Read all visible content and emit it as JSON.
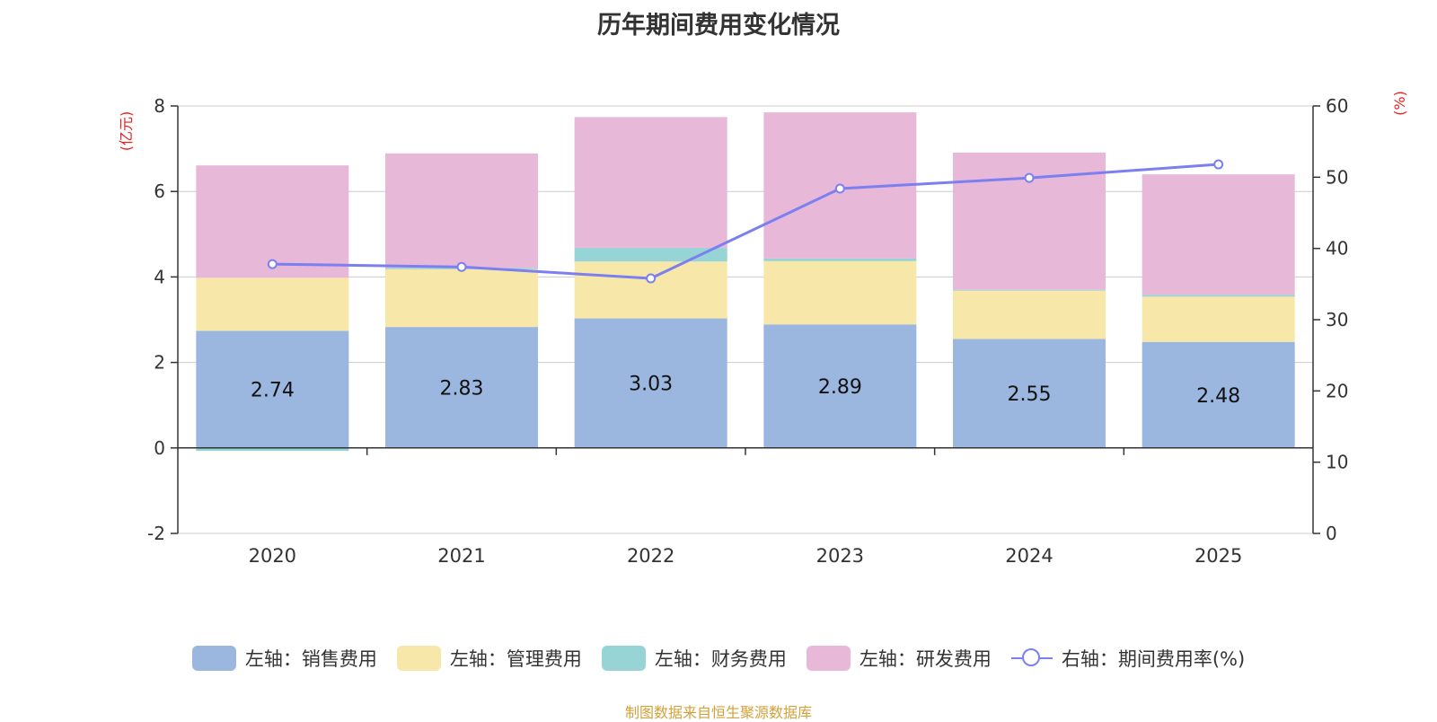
{
  "chart_data": {
    "type": "bar",
    "stacked": true,
    "title": "历年期间费用变化情况",
    "categories": [
      "2020",
      "2021",
      "2022",
      "2023",
      "2024",
      "2025"
    ],
    "left_axis": {
      "label": "(亿元)",
      "min": -2,
      "max": 8,
      "ticks": [
        "-2",
        "0",
        "2",
        "4",
        "6",
        "8"
      ]
    },
    "right_axis": {
      "label": "(%)",
      "min": 0,
      "max": 60,
      "ticks": [
        "0",
        "10",
        "20",
        "30",
        "40",
        "50",
        "60"
      ]
    },
    "series": [
      {
        "name": "左轴：销售费用",
        "axis": "left",
        "color": "#9bb7e0",
        "values": [
          2.74,
          2.83,
          3.03,
          2.89,
          2.55,
          2.48
        ]
      },
      {
        "name": "左轴：管理费用",
        "axis": "left",
        "color": "#f7e7a9",
        "values": [
          1.24,
          1.35,
          1.33,
          1.48,
          1.13,
          1.06
        ]
      },
      {
        "name": "左轴：财务费用",
        "axis": "left",
        "color": "#96d4d6",
        "values": [
          -0.07,
          0.03,
          0.32,
          0.06,
          0.02,
          0.04
        ]
      },
      {
        "name": "左轴：研发费用",
        "axis": "left",
        "color": "#e8b8d9",
        "values": [
          2.63,
          2.68,
          3.06,
          3.42,
          3.21,
          2.82
        ]
      },
      {
        "name": "右轴：期间费用率(%)",
        "axis": "right",
        "type": "line",
        "color": "#7b7ff0",
        "values": [
          37.8,
          37.4,
          35.8,
          48.4,
          49.9,
          51.8
        ]
      }
    ],
    "data_labels_series": "左轴：销售费用",
    "data_labels": [
      "2.74",
      "2.83",
      "3.03",
      "2.89",
      "2.55",
      "2.48"
    ],
    "axis_label_color": "#e8201f"
  },
  "source": "制图数据来自恒生聚源数据库"
}
